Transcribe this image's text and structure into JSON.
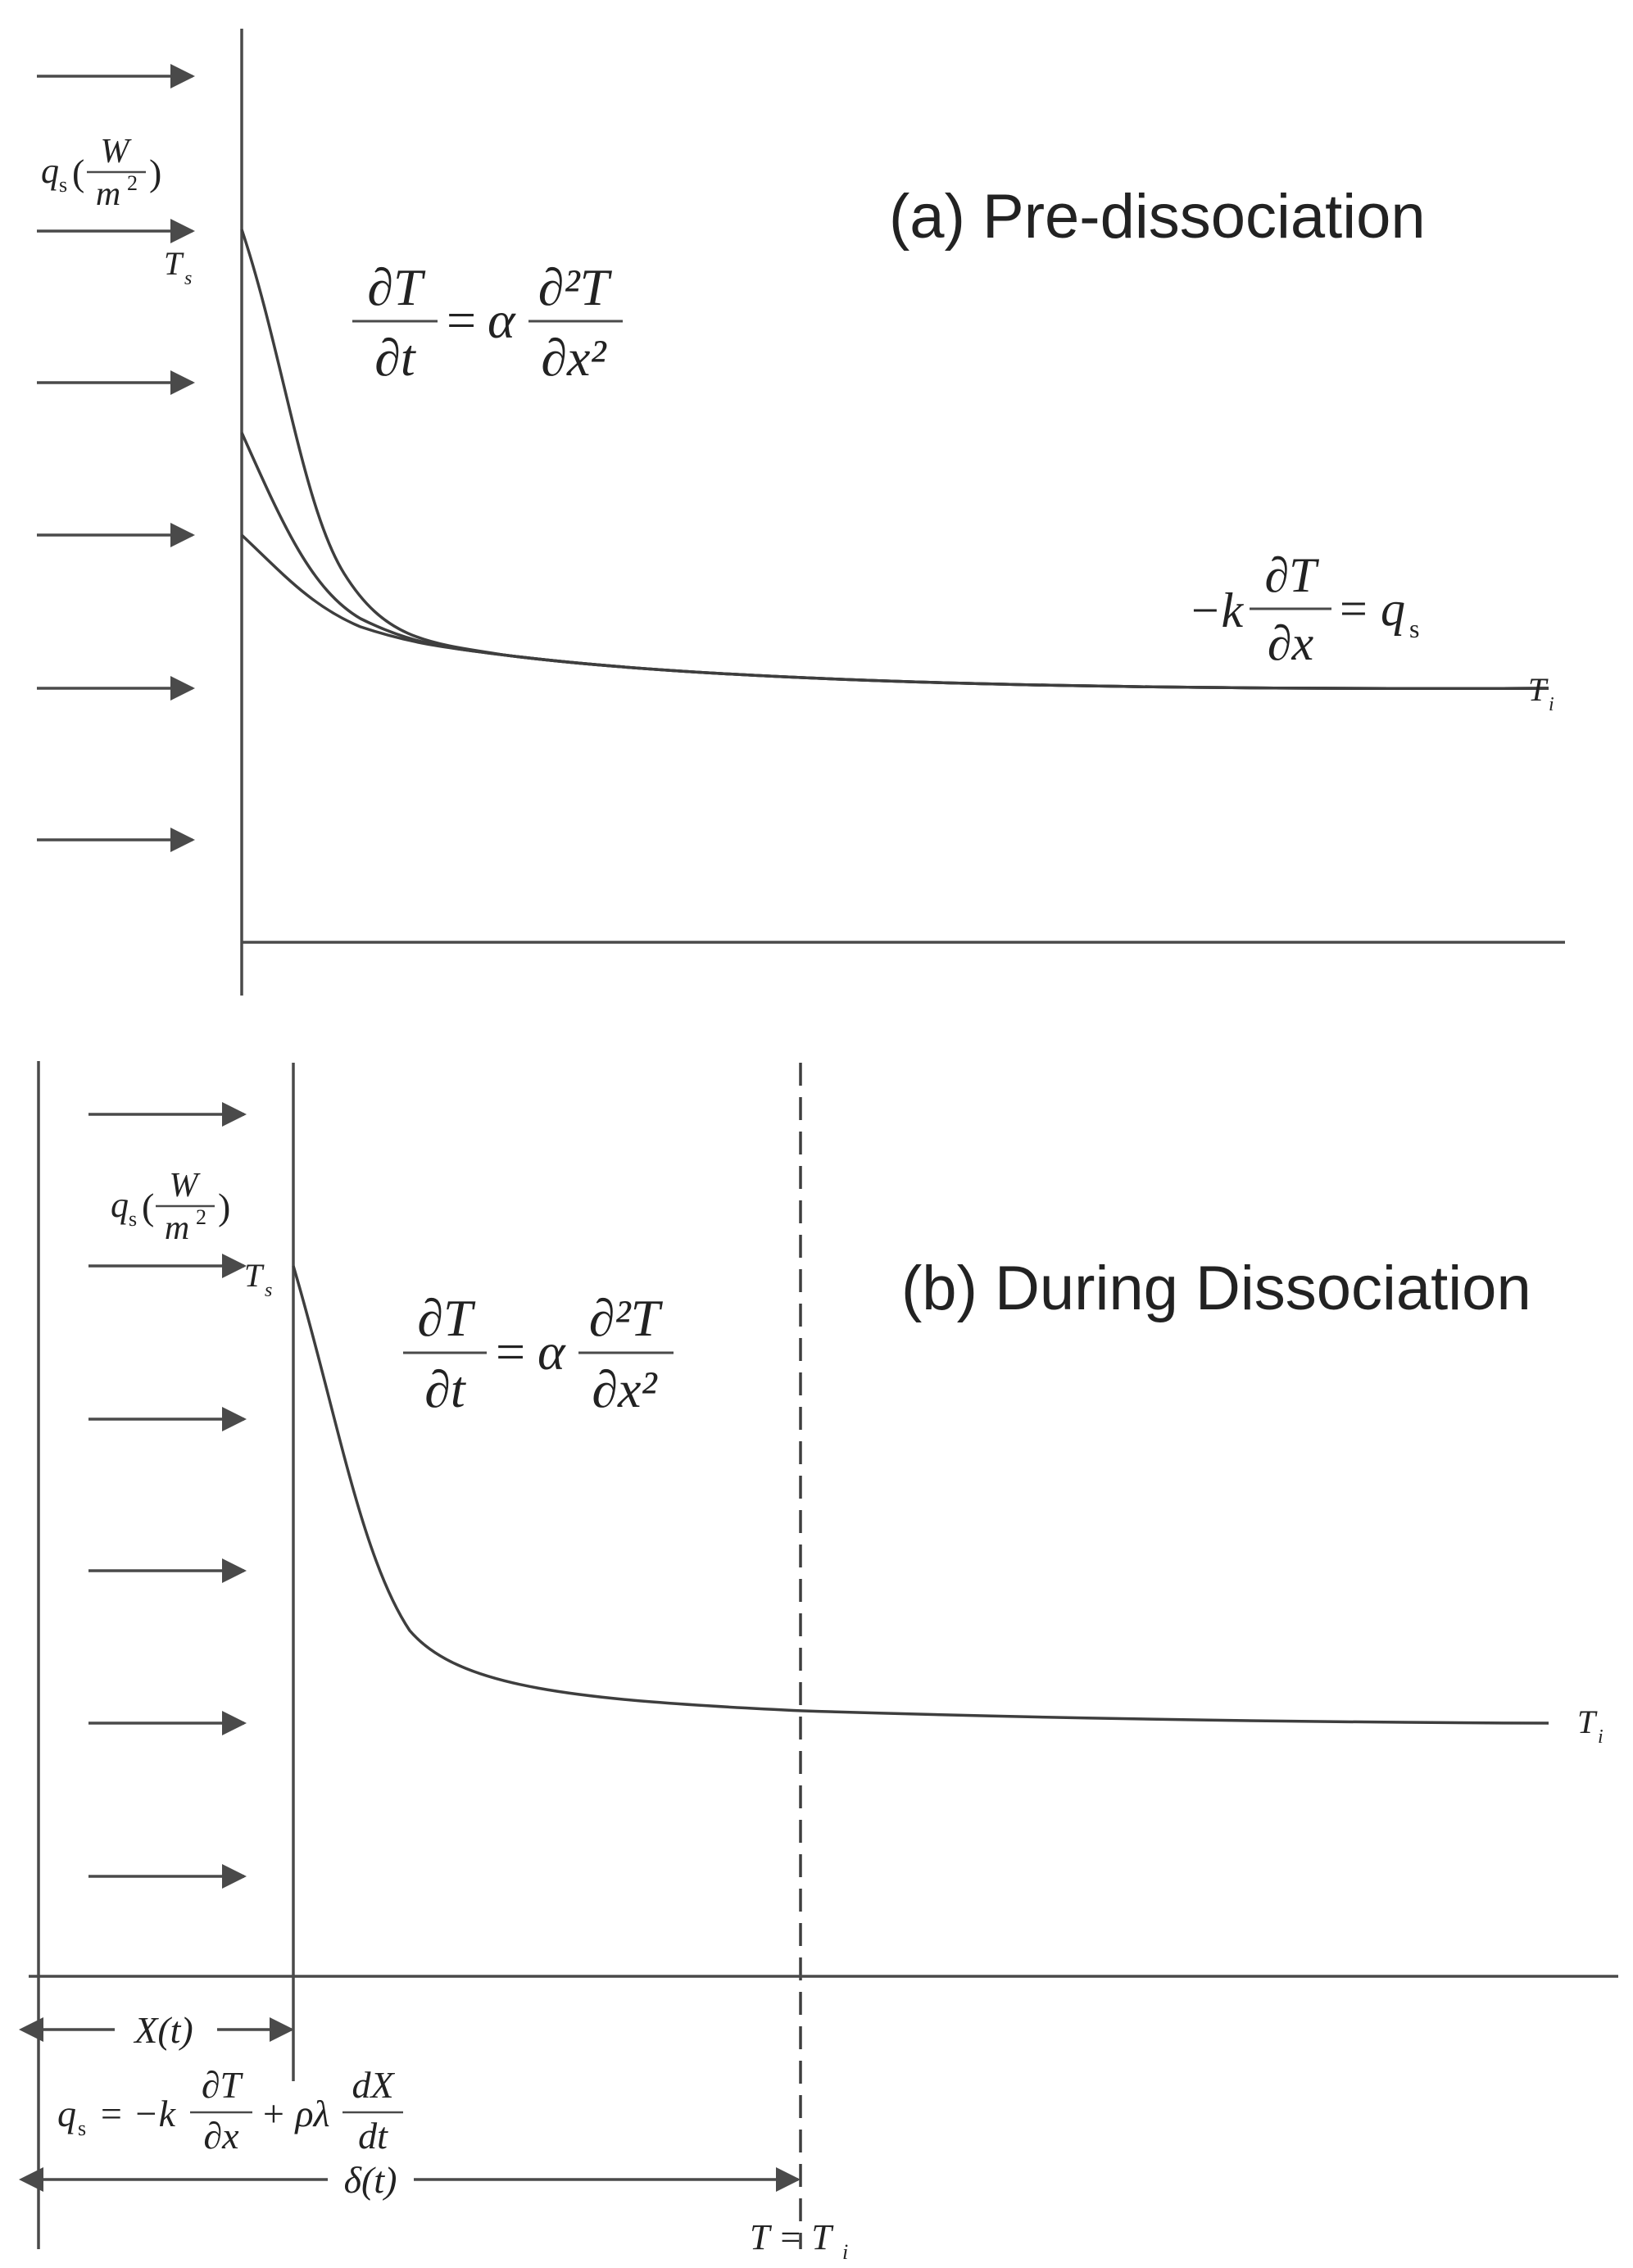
{
  "panel_a": {
    "title": "(a) Pre-dissociation",
    "flux_label": {
      "q": "q",
      "q_sub": "s",
      "num": "W",
      "den": "m",
      "den_sup": "2"
    },
    "surface_temp_label": {
      "main": "T",
      "sub": "s"
    },
    "initial_temp_label": {
      "main": "T",
      "sub": "i"
    },
    "heat_equation": {
      "lhs_num": "∂T",
      "lhs_den": "∂t",
      "eq": "=",
      "alpha": "α",
      "rhs_num": "∂²T",
      "rhs_den": "∂x²"
    },
    "boundary_condition": {
      "neg_k": "−k",
      "num": "∂T",
      "den": "∂x",
      "eq": "=",
      "q": "q",
      "q_sub": "s"
    }
  },
  "panel_b": {
    "title": "(b) During Dissociation",
    "flux_label": {
      "q": "q",
      "q_sub": "s",
      "num": "W",
      "den": "m",
      "den_sup": "2"
    },
    "surface_temp_label": {
      "main": "T",
      "sub": "s"
    },
    "initial_temp_label": {
      "main": "T",
      "sub": "i"
    },
    "heat_equation": {
      "lhs_num": "∂T",
      "lhs_den": "∂t",
      "eq": "=",
      "alpha": "α",
      "rhs_num": "∂²T",
      "rhs_den": "∂x²"
    },
    "front_label": "X(t)",
    "energy_balance": {
      "lhs": "q",
      "lhs_sub": "s",
      "eq": "= −k",
      "num1": "∂T",
      "den1": "∂x",
      "plus": "+ ρλ",
      "num2": "dX",
      "den2": "dt"
    },
    "penetration_label": "δ(t)",
    "penetration_condition": {
      "main": "T = T",
      "sub": "i"
    }
  }
}
